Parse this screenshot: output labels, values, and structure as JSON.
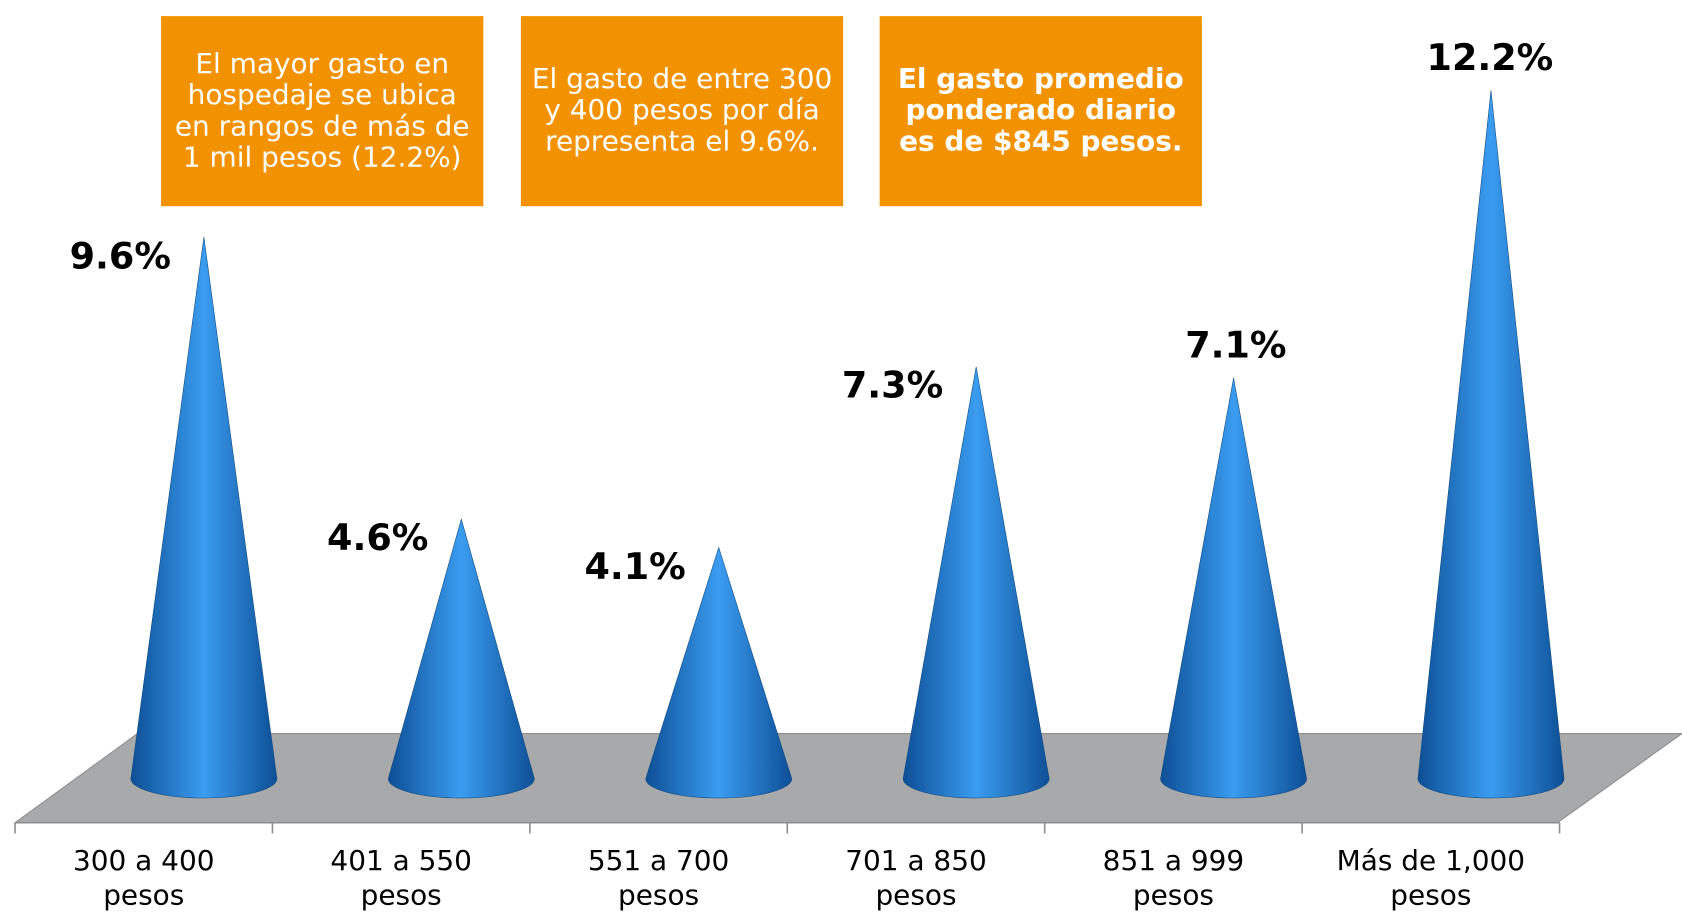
{
  "chart_data": {
    "type": "cone",
    "categories": [
      "300 a 400 pesos",
      "401 a 550 pesos",
      "551 a 700 pesos",
      "701 a 850 pesos",
      "851 a 999 pesos",
      "Más de 1,000 pesos"
    ],
    "values": [
      9.6,
      4.6,
      4.1,
      7.3,
      7.1,
      12.2
    ],
    "value_labels": [
      "9.6%",
      "4.6%",
      "4.1%",
      "7.3%",
      "7.1%",
      "12.2%"
    ],
    "color": "#1f70c4",
    "ylim": [
      0,
      13.8
    ],
    "annotations": [
      "El mayor gasto en hospedaje se ubica en rangos de más de 1 mil pesos (12.2%)",
      "El gasto de entre 300 y 400 pesos  por día representa el 9.6%.",
      "El gasto promedio ponderado diario es de $845 pesos."
    ]
  }
}
